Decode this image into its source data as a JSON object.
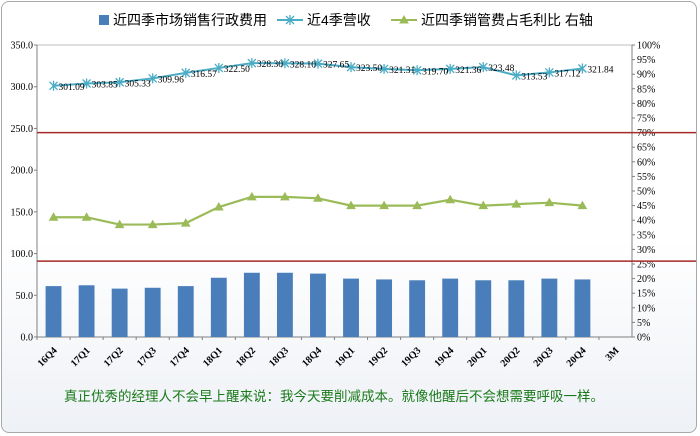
{
  "chart_data": {
    "type": "bar",
    "categories": [
      "16Q4",
      "17Q1",
      "17Q2",
      "17Q3",
      "17Q4",
      "18Q1",
      "18Q2",
      "18Q3",
      "18Q4",
      "19Q1",
      "19Q2",
      "19Q3",
      "19Q4",
      "20Q1",
      "20Q2",
      "20Q3",
      "20Q4",
      "3M"
    ],
    "series": [
      {
        "name": "近四季市场销售行政费用",
        "kind": "bar",
        "axis": "left",
        "color": "#4a7ebb",
        "values": [
          61,
          62,
          58,
          59,
          61,
          71,
          77,
          77,
          76,
          70,
          69,
          68,
          70,
          68,
          68,
          70,
          69,
          null
        ]
      },
      {
        "name": "近4季营收",
        "kind": "line",
        "axis": "left",
        "color": "#4bacc6",
        "marker": "star",
        "values": [
          301.09,
          303.85,
          305.33,
          309.96,
          316.57,
          322.5,
          328.3,
          328.1,
          327.65,
          323.5,
          321.31,
          319.7,
          321.36,
          323.48,
          313.53,
          317.12,
          321.84,
          null
        ],
        "labels": [
          "301.09",
          "303.85",
          "305.33",
          "309.96",
          "316.57",
          "322.50",
          "328.30",
          "328.10",
          "327.65",
          "323.50",
          "321.31",
          "319.70",
          "321.36",
          "323.48",
          "313.53",
          "317.12",
          "321.84",
          null
        ]
      },
      {
        "name": "近四季销管费占毛利比 右轴",
        "kind": "line",
        "axis": "right",
        "color": "#9bbb59",
        "marker": "triangle",
        "values": [
          41,
          41,
          38.5,
          38.5,
          39,
          44.5,
          48,
          48,
          47.5,
          45,
          45,
          45,
          47,
          45,
          45.5,
          46,
          45,
          null
        ]
      }
    ],
    "ylim": [
      0,
      350
    ],
    "yticks": [
      "0.0",
      "50.0",
      "100.0",
      "150.0",
      "200.0",
      "250.0",
      "300.0",
      "350.0"
    ],
    "y2lim": [
      0,
      100
    ],
    "y2ticks": [
      "0%",
      "5%",
      "10%",
      "15%",
      "20%",
      "25%",
      "30%",
      "35%",
      "40%",
      "45%",
      "50%",
      "55%",
      "60%",
      "65%",
      "70%",
      "75%",
      "80%",
      "85%",
      "90%",
      "95%",
      "100%"
    ],
    "reference_lines": [
      {
        "axis": "right",
        "value": 70,
        "color": "#a52a2a"
      },
      {
        "axis": "right",
        "value": 26,
        "color": "#a52a2a"
      }
    ],
    "grid": false,
    "legend_position": "top"
  },
  "caption": "真正优秀的经理人不会早上醒来说：我今天要削减成本。就像他醒后不会想需要呼吸一样。"
}
